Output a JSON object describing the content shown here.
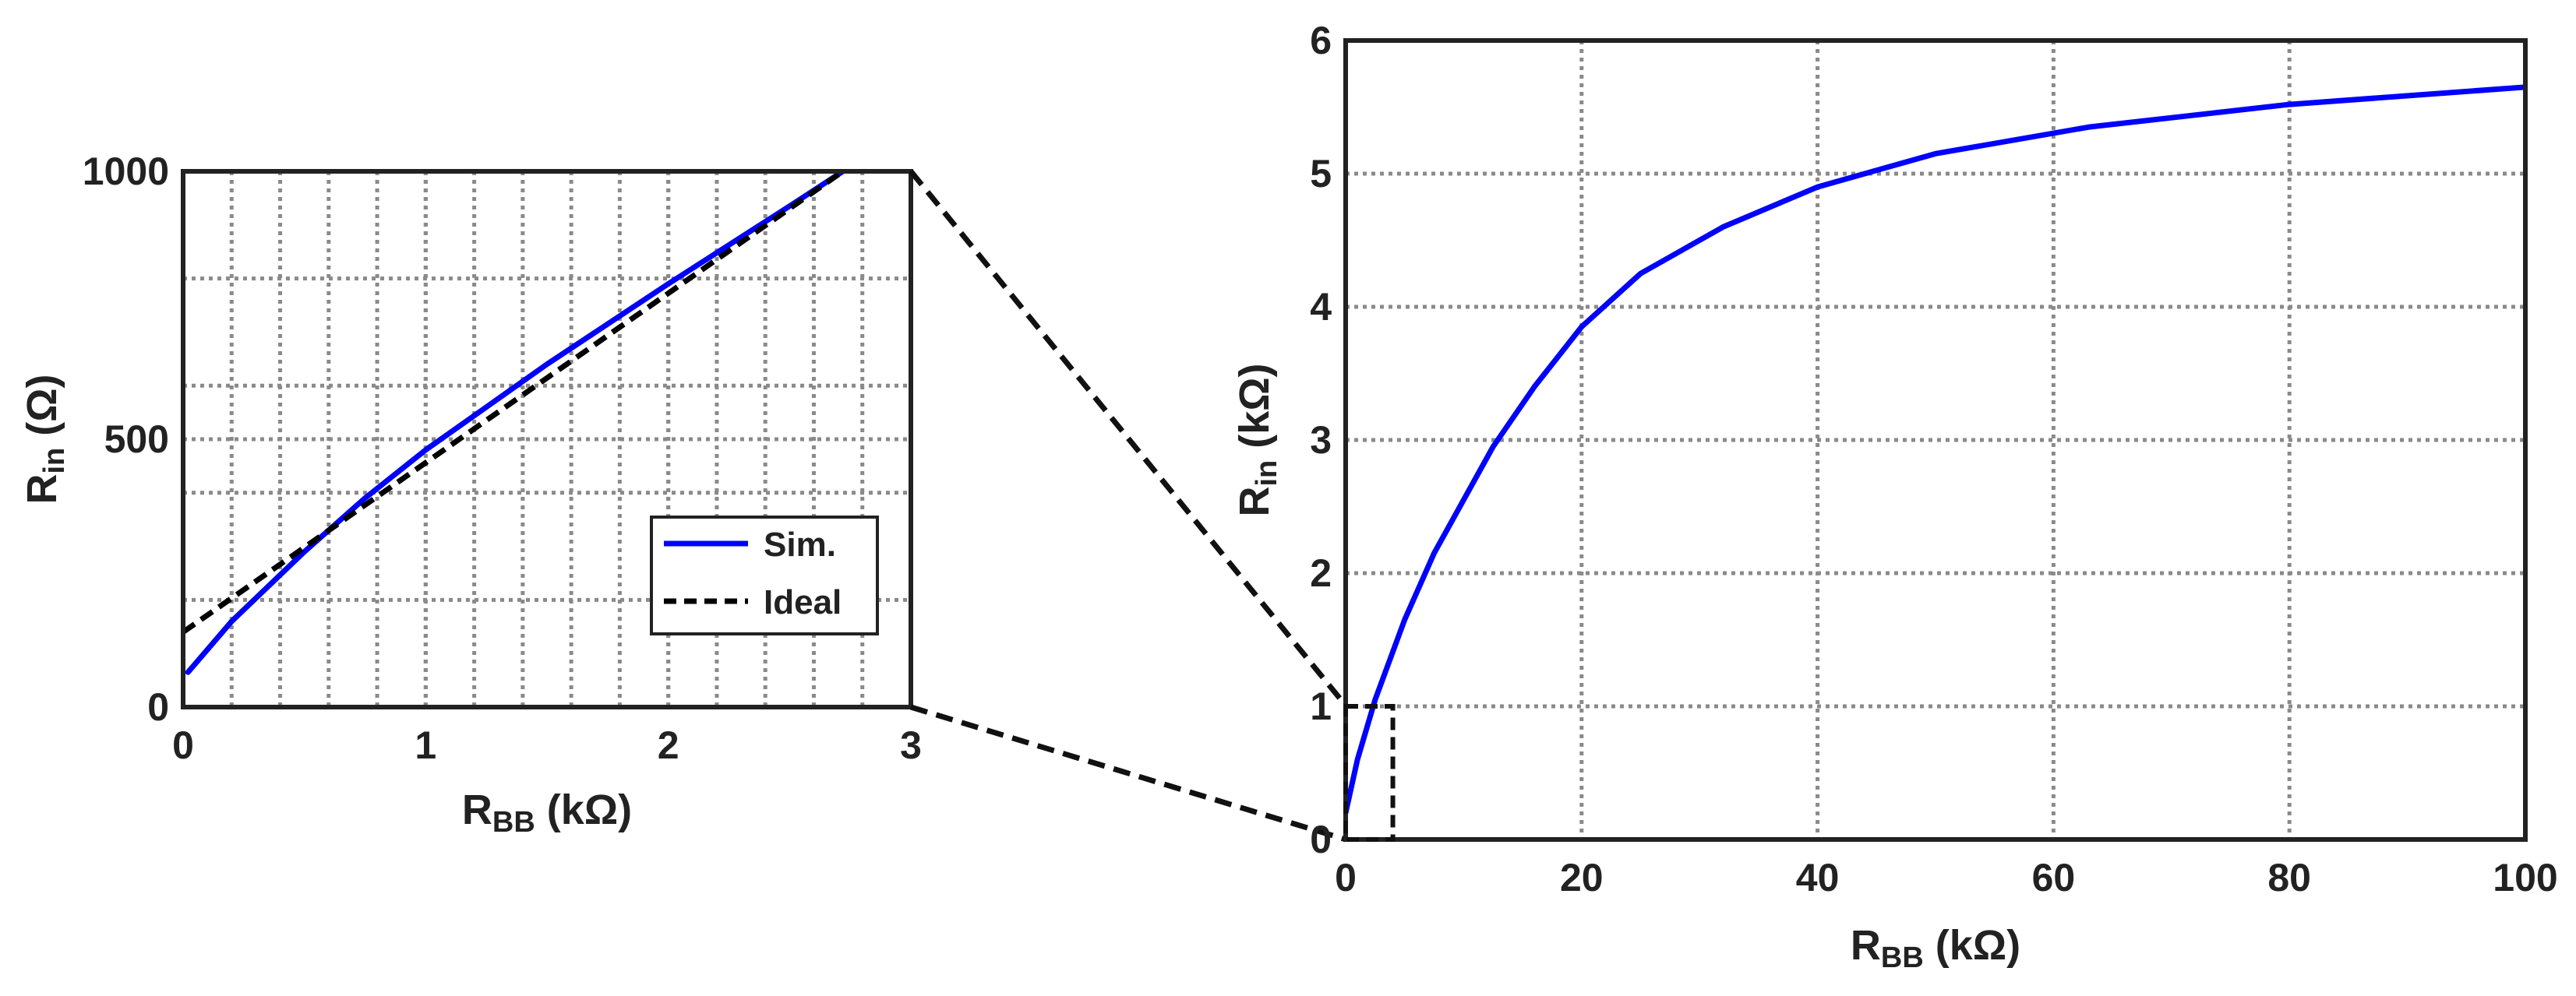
{
  "chart_data": [
    {
      "type": "line",
      "panel": "inset",
      "xlabel": {
        "main": "R",
        "sub": "BB",
        "rest": " (kΩ)"
      },
      "ylabel": {
        "main": "R",
        "sub": "in",
        "rest": " (Ω)"
      },
      "xlim": [
        0,
        3
      ],
      "ylim": [
        0,
        1000
      ],
      "xticks": [
        0,
        1,
        2,
        3
      ],
      "yticks": [
        0,
        500,
        1000
      ],
      "grid": true,
      "grid_style": "dotted",
      "minor_x_step": 0.2,
      "minor_y_step": 200,
      "legend": {
        "position": "lower-right",
        "entries": [
          "Sim.",
          "Ideal"
        ]
      },
      "series": [
        {
          "name": "Sim.",
          "color": "#0000ff",
          "dash": "solid",
          "x": [
            0.02,
            0.2,
            0.5,
            0.75,
            1.0,
            1.5,
            2.0,
            2.5,
            2.72
          ],
          "y": [
            65,
            160,
            290,
            390,
            480,
            640,
            790,
            935,
            1000
          ]
        },
        {
          "name": "Ideal",
          "color": "#000000",
          "dash": "dashed",
          "x": [
            0,
            2.72
          ],
          "y": [
            140,
            1000
          ]
        }
      ]
    },
    {
      "type": "line",
      "panel": "main",
      "xlabel": {
        "main": "R",
        "sub": "BB",
        "rest": " (kΩ)"
      },
      "ylabel": {
        "main": "R",
        "sub": "in",
        "rest": " (kΩ)"
      },
      "xlim": [
        0,
        100
      ],
      "ylim": [
        0,
        6
      ],
      "xticks": [
        0,
        20,
        40,
        60,
        80,
        100
      ],
      "yticks": [
        0,
        1,
        2,
        3,
        4,
        5,
        6
      ],
      "grid": true,
      "grid_style": "dotted",
      "zoom_box": {
        "x": [
          0,
          4
        ],
        "y": [
          0,
          1
        ]
      },
      "series": [
        {
          "name": "Sim.",
          "color": "#0000ff",
          "dash": "solid",
          "x": [
            0,
            1,
            2.5,
            5,
            7.5,
            10,
            12.5,
            16,
            20,
            25,
            32,
            40,
            50,
            63,
            80,
            100
          ],
          "y": [
            0.2,
            0.6,
            1.05,
            1.65,
            2.15,
            2.55,
            2.95,
            3.4,
            3.85,
            4.25,
            4.6,
            4.9,
            5.15,
            5.35,
            5.52,
            5.65
          ]
        }
      ]
    }
  ]
}
